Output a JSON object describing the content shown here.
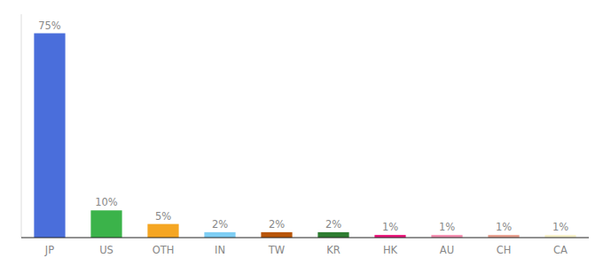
{
  "chart_data": {
    "type": "bar",
    "categories": [
      "JP",
      "US",
      "OTH",
      "IN",
      "TW",
      "KR",
      "HK",
      "AU",
      "CH",
      "CA"
    ],
    "values": [
      75,
      10,
      5,
      2,
      2,
      2,
      1,
      1,
      1,
      1
    ],
    "value_labels": [
      "75%",
      "10%",
      "5%",
      "2%",
      "2%",
      "2%",
      "1%",
      "1%",
      "1%",
      "1%"
    ],
    "colors": [
      "#4a6edb",
      "#3bb34a",
      "#f5a623",
      "#7ecef4",
      "#b8560a",
      "#2e7d32",
      "#e8187a",
      "#f48fb1",
      "#e8a090",
      "#f5f0c8"
    ],
    "ylim": [
      0,
      82
    ],
    "grid": false,
    "data_labels": true,
    "tick_labels": "x"
  }
}
